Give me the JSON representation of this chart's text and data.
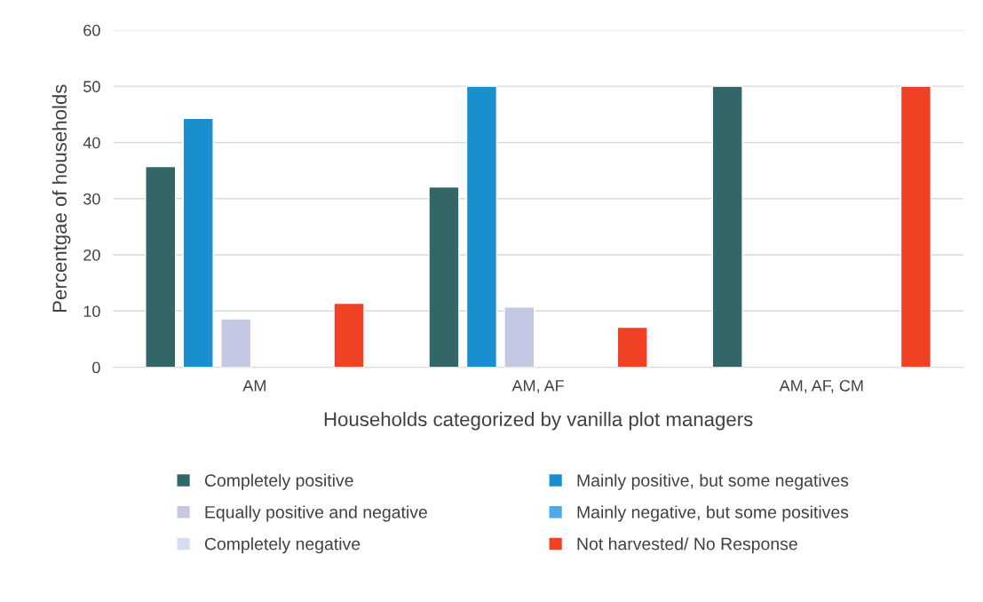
{
  "chart_data": {
    "type": "bar",
    "xlabel": "Households categorized by vanilla plot managers",
    "ylabel": "Percentgae of households",
    "categories": [
      "AM",
      "AM, AF",
      "AM, AF, CM"
    ],
    "series": [
      {
        "name": "Completely positive",
        "color": "#336666",
        "values": [
          35.7,
          32.1,
          50
        ]
      },
      {
        "name": "Mainly positive, but some negatives",
        "color": "#1a8fcf",
        "values": [
          44.3,
          50,
          0
        ]
      },
      {
        "name": "Equally positive and negative",
        "color": "#c5c8e3",
        "values": [
          8.6,
          10.7,
          0
        ]
      },
      {
        "name": "Mainly negative, but some positives",
        "color": "#4ea8ea",
        "values": [
          0,
          0,
          0
        ]
      },
      {
        "name": "Completely negative",
        "color": "#d9dcf1",
        "values": [
          0,
          0,
          0
        ]
      },
      {
        "name": "Not harvested/ No Response",
        "color": "#f04124",
        "values": [
          11.4,
          7.1,
          50
        ]
      }
    ],
    "ylim": [
      0,
      60
    ],
    "yticks": [
      0,
      10,
      20,
      30,
      40,
      50,
      60
    ],
    "grid": "y",
    "legend": "bottom"
  }
}
